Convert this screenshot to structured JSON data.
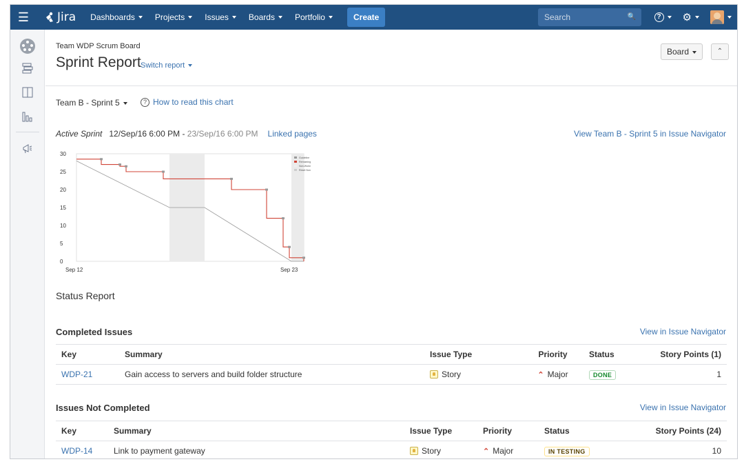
{
  "topbar": {
    "app_name": "Jira",
    "nav": [
      {
        "label": "Dashboards"
      },
      {
        "label": "Projects"
      },
      {
        "label": "Issues"
      },
      {
        "label": "Boards"
      },
      {
        "label": "Portfolio"
      }
    ],
    "create_label": "Create",
    "search_placeholder": "Search",
    "brand_color": "#205081"
  },
  "header": {
    "board_name": "Team WDP Scrum Board",
    "title": "Sprint Report",
    "switch_report": "Switch report",
    "board_button": "Board"
  },
  "sprint": {
    "selector": "Team B - Sprint 5",
    "how_to_read": "How to read this chart",
    "state_label": "Active Sprint",
    "start": "12/Sep/16 6:00 PM",
    "separator": " - ",
    "end": "23/Sep/16 6:00 PM",
    "linked_pages": "Linked pages",
    "view_in_navigator": "View Team B - Sprint 5 in Issue Navigator"
  },
  "chart_data": {
    "type": "line",
    "y_ticks": [
      "30",
      "25",
      "20",
      "15",
      "10",
      "5",
      "0"
    ],
    "x_ticks": [
      "Sep 12",
      "Sep 23"
    ],
    "ylim": [
      0,
      30
    ],
    "legend_placement": "top-right",
    "legend": [
      "Guideline",
      "Remaining Values",
      "Non-Working Days",
      "Reset Non-Working Days"
    ],
    "series": [
      {
        "name": "Guideline",
        "color": "#999999",
        "points": [
          [
            0,
            28
          ],
          [
            4.5,
            15
          ],
          [
            6.2,
            15
          ],
          [
            10.4,
            0
          ],
          [
            11,
            0
          ]
        ]
      },
      {
        "name": "Remaining Values",
        "color": "#d04437",
        "points": [
          [
            0,
            28.5
          ],
          [
            1.2,
            28.5
          ],
          [
            1.2,
            27
          ],
          [
            2.1,
            27
          ],
          [
            2.1,
            26.5
          ],
          [
            2.4,
            26.5
          ],
          [
            2.4,
            25
          ],
          [
            4.2,
            25
          ],
          [
            4.2,
            23
          ],
          [
            7.5,
            23
          ],
          [
            7.5,
            20
          ],
          [
            9.2,
            20
          ],
          [
            9.2,
            12
          ],
          [
            10.0,
            12
          ],
          [
            10.0,
            4
          ],
          [
            10.3,
            4
          ],
          [
            10.3,
            1
          ],
          [
            11,
            1
          ],
          [
            11,
            0
          ]
        ]
      }
    ],
    "non_working_bands": [
      [
        4.5,
        6.2
      ],
      [
        10.4,
        11
      ]
    ]
  },
  "status_report_title": "Status Report",
  "completed": {
    "title": "Completed Issues",
    "link": "View in Issue Navigator",
    "columns": [
      "Key",
      "Summary",
      "Issue Type",
      "Priority",
      "Status",
      "Story Points (1)"
    ],
    "rows": [
      {
        "key": "WDP-21",
        "summary": "Gain access to servers and build folder structure",
        "type": "Story",
        "priority": "Major",
        "status": "DONE",
        "points": "1"
      }
    ]
  },
  "not_completed": {
    "title": "Issues Not Completed",
    "link": "View in Issue Navigator",
    "columns": [
      "Key",
      "Summary",
      "Issue Type",
      "Priority",
      "Status",
      "Story Points (24)"
    ],
    "rows": [
      {
        "key": "WDP-14",
        "summary": "Link to payment gateway",
        "type": "Story",
        "priority": "Major",
        "status": "IN TESTING",
        "points": "10"
      }
    ]
  }
}
